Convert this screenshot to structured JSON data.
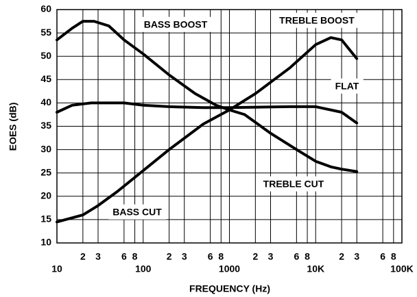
{
  "chart_data": {
    "type": "line",
    "x_label": "FREQUENCY (Hz)",
    "y_label": "EOES (dB)",
    "log_x": true,
    "grid": true,
    "xlim": [
      10,
      100000
    ],
    "ylim": [
      10,
      60
    ],
    "yticks": [
      10,
      15,
      20,
      25,
      30,
      35,
      40,
      45,
      50,
      55,
      60
    ],
    "xticks": [
      10,
      {
        "value": 20,
        "label": "2"
      },
      {
        "value": 30,
        "label": "3"
      },
      {
        "value": 60,
        "label": "6"
      },
      {
        "value": 80,
        "label": "8"
      },
      100,
      {
        "value": 200,
        "label": "2"
      },
      {
        "value": 300,
        "label": "3"
      },
      {
        "value": 600,
        "label": "6"
      },
      {
        "value": 800,
        "label": "8"
      },
      1000,
      {
        "value": 2000,
        "label": "2"
      },
      {
        "value": 3000,
        "label": "3"
      },
      {
        "value": 6000,
        "label": "6"
      },
      {
        "value": 8000,
        "label": "8"
      },
      {
        "value": 10000,
        "label": "10K"
      },
      {
        "value": 20000,
        "label": "2"
      },
      {
        "value": 30000,
        "label": "3"
      },
      {
        "value": 60000,
        "label": "6"
      },
      {
        "value": 80000,
        "label": "8"
      },
      {
        "value": 100000,
        "label": "100K"
      }
    ],
    "annotations": [
      "BASS BOOST",
      "TREBLE BOOST",
      "FLAT",
      "TREBLE CUT",
      "BASS CUT"
    ],
    "series": [
      {
        "color": "#000000",
        "x": [
          10,
          15,
          20,
          27,
          40,
          60,
          100,
          200,
          400,
          700,
          1000,
          1500,
          3000,
          6000,
          10000,
          15000,
          20000,
          30000
        ],
        "values": [
          53.5,
          56,
          57.5,
          57.5,
          56.5,
          53.5,
          50.5,
          46,
          42,
          39.5,
          38.5,
          37.5,
          33.5,
          30,
          27.5,
          26.3,
          25.8,
          25.3
        ]
      },
      {
        "color": "#000000",
        "x": [
          10,
          20,
          30,
          50,
          100,
          200,
          500,
          1000,
          2000,
          5000,
          10000,
          15000,
          20000,
          30000
        ],
        "values": [
          14.5,
          16,
          18,
          21,
          25.5,
          30,
          35.5,
          38.5,
          42,
          47.5,
          52.5,
          54,
          53.5,
          49.5
        ]
      },
      {
        "color": "#000000",
        "x": [
          10,
          15,
          25,
          60,
          100,
          200,
          500,
          1000,
          5000,
          10000,
          20000,
          30000
        ],
        "values": [
          38,
          39.5,
          40,
          40,
          39.5,
          39.2,
          39,
          39,
          39.2,
          39.2,
          38,
          35.7
        ]
      }
    ]
  }
}
